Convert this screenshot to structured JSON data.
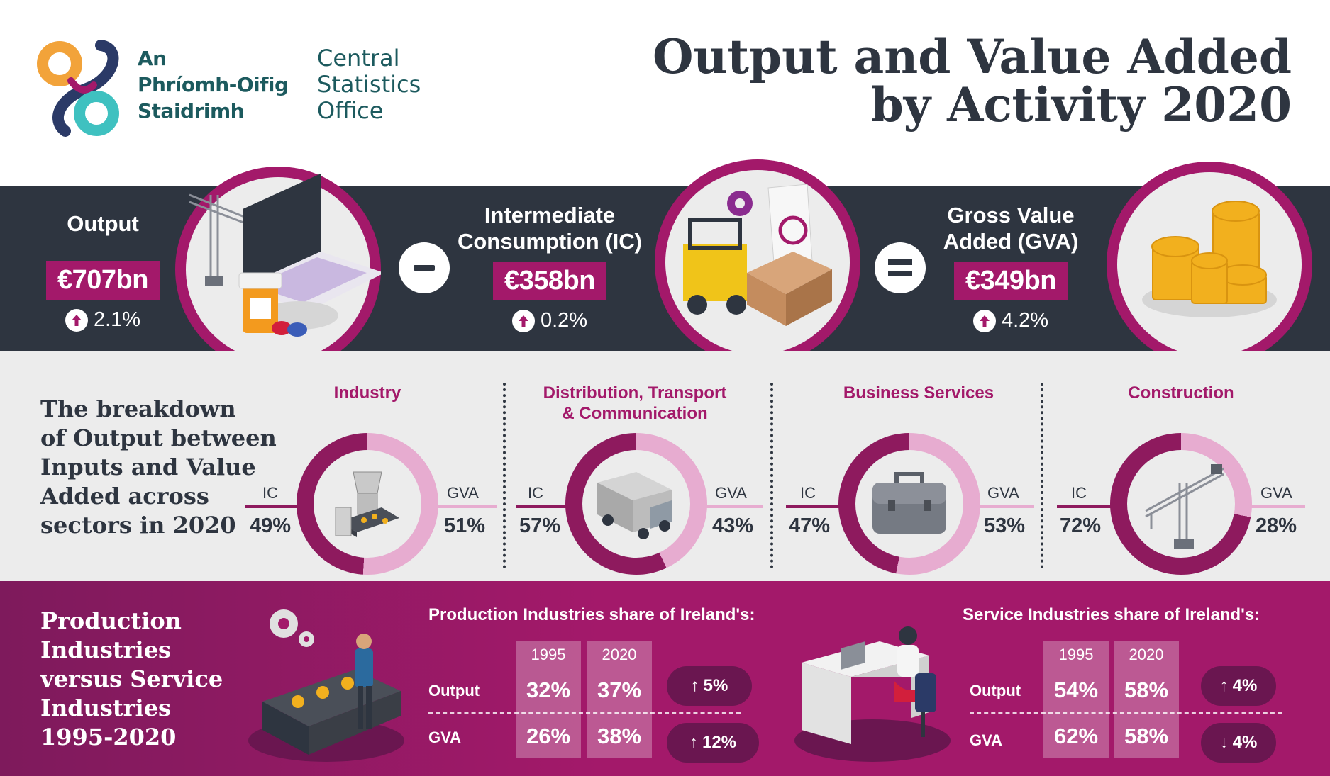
{
  "header": {
    "logo_irish": [
      "An",
      "Phríomh-Oifig",
      "Staidrimh"
    ],
    "logo_english": [
      "Central",
      "Statistics",
      "Office"
    ],
    "title_line1": "Output and Value Added",
    "title_line2": "by Activity 2020"
  },
  "metrics": {
    "output": {
      "label": "Output",
      "value": "€707bn",
      "change": "2.1%",
      "direction": "up"
    },
    "ic": {
      "label_line1": "Intermediate",
      "label_line2": "Consumption (IC)",
      "value": "€358bn",
      "change": "0.2%",
      "direction": "up"
    },
    "gva": {
      "label_line1": "Gross Value",
      "label_line2": "Added (GVA)",
      "value": "€349bn",
      "change": "4.2%",
      "direction": "up"
    },
    "minus_sign": "−",
    "equals_sign": "="
  },
  "breakdown": {
    "title": [
      "The breakdown",
      "of Output between",
      "Inputs and Value",
      "Added across",
      "sectors in 2020"
    ],
    "ic_label": "IC",
    "gva_label": "GVA",
    "sectors": [
      {
        "name": "Industry",
        "ic": "49%",
        "gva": "51%",
        "ic_share": 49,
        "icon": "industry-machine-icon"
      },
      {
        "name_line1": "Distribution, Transport",
        "name_line2": "& Communication",
        "ic": "57%",
        "gva": "43%",
        "ic_share": 57,
        "icon": "truck-icon"
      },
      {
        "name": "Business Services",
        "ic": "47%",
        "gva": "53%",
        "ic_share": 47,
        "icon": "briefcase-icon"
      },
      {
        "name": "Construction",
        "ic": "72%",
        "gva": "28%",
        "ic_share": 72,
        "icon": "crane-icon"
      }
    ]
  },
  "comparison": {
    "title": [
      "Production",
      "Industries",
      "versus Service",
      "Industries",
      "1995-2020"
    ],
    "production": {
      "heading": "Production Industries share of Ireland's:",
      "years": [
        "1995",
        "2020"
      ],
      "rows": [
        {
          "label": "Output",
          "v1995": "32%",
          "v2020": "37%",
          "change": "5%",
          "direction": "up"
        },
        {
          "label": "GVA",
          "v1995": "26%",
          "v2020": "38%",
          "change": "12%",
          "direction": "up"
        }
      ]
    },
    "services": {
      "heading": "Service Industries share of Ireland's:",
      "years": [
        "1995",
        "2020"
      ],
      "rows": [
        {
          "label": "Output",
          "v1995": "54%",
          "v2020": "58%",
          "change": "4%",
          "direction": "up"
        },
        {
          "label": "GVA",
          "v1995": "62%",
          "v2020": "58%",
          "change": "4%",
          "direction": "down"
        }
      ]
    }
  },
  "colors": {
    "brand_magenta": "#a3196a",
    "ring_light": "#e7acd0",
    "ring_dark": "#8e1a5e",
    "dark_band": "#2e3540",
    "grey_band": "#ececec",
    "logo_teal": "#1c5a5e",
    "logo_orange": "#f2a33a",
    "logo_cyan": "#3fc1c0",
    "logo_navy": "#2b3a67"
  }
}
